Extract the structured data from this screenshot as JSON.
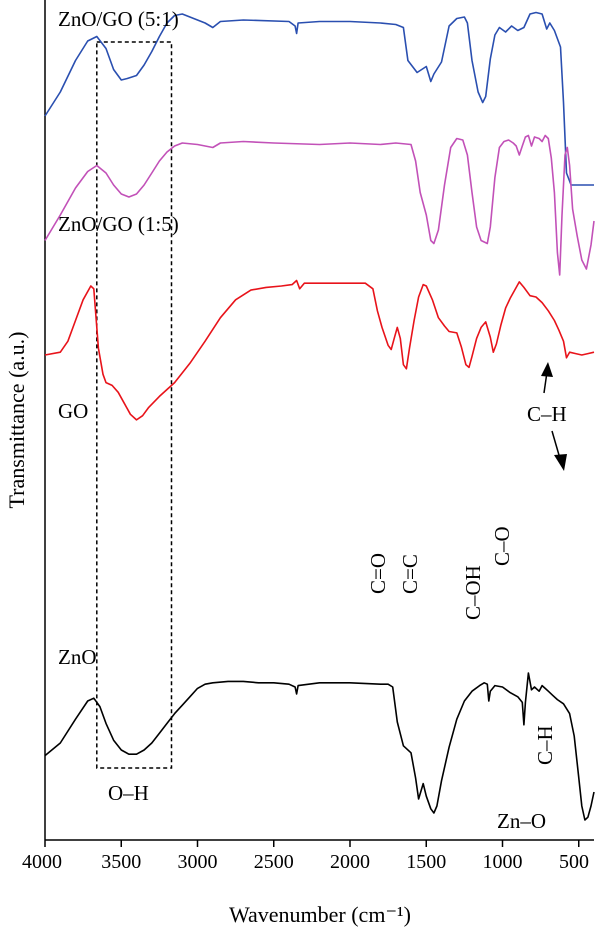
{
  "chart_data": {
    "type": "line",
    "title": "",
    "xlabel": "Wavenumber (cm⁻¹)",
    "ylabel": "Transmittance (a.u.)",
    "xlim": [
      4000,
      400
    ],
    "x_reversed": true,
    "x_ticks": [
      4000,
      3500,
      3000,
      2500,
      2000,
      1500,
      1000,
      500
    ],
    "y_ticks_shown": false,
    "grid": false,
    "legend": "none",
    "series": [
      {
        "name": "ZnO/GO (5:1)",
        "color": "#2a4fb0",
        "offset": 3,
        "points": [
          [
            4000,
            0.46
          ],
          [
            3900,
            0.62
          ],
          [
            3800,
            0.83
          ],
          [
            3720,
            0.96
          ],
          [
            3660,
            0.99
          ],
          [
            3600,
            0.91
          ],
          [
            3550,
            0.77
          ],
          [
            3500,
            0.7
          ],
          [
            3460,
            0.71
          ],
          [
            3400,
            0.73
          ],
          [
            3350,
            0.8
          ],
          [
            3300,
            0.89
          ],
          [
            3250,
            0.99
          ],
          [
            3200,
            1.08
          ],
          [
            3150,
            1.13
          ],
          [
            3100,
            1.14
          ],
          [
            3050,
            1.12
          ],
          [
            2950,
            1.08
          ],
          [
            2900,
            1.05
          ],
          [
            2850,
            1.09
          ],
          [
            2700,
            1.1
          ],
          [
            2400,
            1.09
          ],
          [
            2360,
            1.06
          ],
          [
            2350,
            1.01
          ],
          [
            2340,
            1.08
          ],
          [
            2200,
            1.09
          ],
          [
            2000,
            1.09
          ],
          [
            1800,
            1.08
          ],
          [
            1700,
            1.07
          ],
          [
            1650,
            1.05
          ],
          [
            1620,
            0.83
          ],
          [
            1560,
            0.75
          ],
          [
            1500,
            0.79
          ],
          [
            1470,
            0.69
          ],
          [
            1450,
            0.74
          ],
          [
            1400,
            0.82
          ],
          [
            1350,
            1.06
          ],
          [
            1300,
            1.11
          ],
          [
            1250,
            1.12
          ],
          [
            1230,
            1.08
          ],
          [
            1200,
            0.83
          ],
          [
            1160,
            0.62
          ],
          [
            1130,
            0.55
          ],
          [
            1110,
            0.59
          ],
          [
            1080,
            0.84
          ],
          [
            1050,
            1.0
          ],
          [
            1020,
            1.05
          ],
          [
            980,
            1.02
          ],
          [
            940,
            1.06
          ],
          [
            900,
            1.03
          ],
          [
            860,
            1.05
          ],
          [
            820,
            1.14
          ],
          [
            780,
            1.15
          ],
          [
            740,
            1.14
          ],
          [
            710,
            1.04
          ],
          [
            690,
            1.08
          ],
          [
            660,
            1.03
          ],
          [
            620,
            0.92
          ],
          [
            600,
            0.55
          ],
          [
            580,
            0.08
          ],
          [
            550,
            0.0
          ],
          [
            500,
            0.0
          ],
          [
            450,
            0.0
          ],
          [
            400,
            0.0
          ]
        ]
      },
      {
        "name": "ZnO/GO (1:5)",
        "color": "#c251b8",
        "offset": 2,
        "points": [
          [
            4000,
            0.53
          ],
          [
            3900,
            0.7
          ],
          [
            3800,
            0.88
          ],
          [
            3720,
            0.99
          ],
          [
            3660,
            1.03
          ],
          [
            3600,
            0.98
          ],
          [
            3550,
            0.9
          ],
          [
            3500,
            0.84
          ],
          [
            3450,
            0.82
          ],
          [
            3400,
            0.84
          ],
          [
            3350,
            0.9
          ],
          [
            3300,
            0.98
          ],
          [
            3250,
            1.06
          ],
          [
            3200,
            1.12
          ],
          [
            3150,
            1.16
          ],
          [
            3100,
            1.18
          ],
          [
            3000,
            1.17
          ],
          [
            2900,
            1.15
          ],
          [
            2850,
            1.18
          ],
          [
            2700,
            1.19
          ],
          [
            2500,
            1.18
          ],
          [
            2200,
            1.17
          ],
          [
            2000,
            1.18
          ],
          [
            1800,
            1.17
          ],
          [
            1700,
            1.18
          ],
          [
            1600,
            1.17
          ],
          [
            1570,
            1.06
          ],
          [
            1540,
            0.85
          ],
          [
            1500,
            0.7
          ],
          [
            1470,
            0.53
          ],
          [
            1450,
            0.51
          ],
          [
            1420,
            0.6
          ],
          [
            1380,
            0.9
          ],
          [
            1340,
            1.15
          ],
          [
            1300,
            1.21
          ],
          [
            1260,
            1.2
          ],
          [
            1230,
            1.1
          ],
          [
            1200,
            0.85
          ],
          [
            1170,
            0.62
          ],
          [
            1140,
            0.53
          ],
          [
            1100,
            0.51
          ],
          [
            1080,
            0.62
          ],
          [
            1050,
            0.95
          ],
          [
            1020,
            1.15
          ],
          [
            990,
            1.19
          ],
          [
            960,
            1.2
          ],
          [
            930,
            1.18
          ],
          [
            910,
            1.16
          ],
          [
            890,
            1.1
          ],
          [
            870,
            1.16
          ],
          [
            850,
            1.22
          ],
          [
            830,
            1.23
          ],
          [
            810,
            1.16
          ],
          [
            790,
            1.22
          ],
          [
            760,
            1.21
          ],
          [
            740,
            1.19
          ],
          [
            720,
            1.23
          ],
          [
            700,
            1.21
          ],
          [
            680,
            1.08
          ],
          [
            660,
            0.85
          ],
          [
            640,
            0.45
          ],
          [
            625,
            0.3
          ],
          [
            610,
            0.7
          ],
          [
            590,
            1.1
          ],
          [
            575,
            1.15
          ],
          [
            560,
            1.03
          ],
          [
            540,
            0.74
          ],
          [
            510,
            0.56
          ],
          [
            480,
            0.4
          ],
          [
            450,
            0.34
          ],
          [
            420,
            0.5
          ],
          [
            400,
            0.66
          ]
        ]
      },
      {
        "name": "GO",
        "color": "#e8131a",
        "offset": 1,
        "points": [
          [
            4000,
            1.0
          ],
          [
            3900,
            1.02
          ],
          [
            3850,
            1.1
          ],
          [
            3800,
            1.25
          ],
          [
            3750,
            1.4
          ],
          [
            3700,
            1.5
          ],
          [
            3680,
            1.48
          ],
          [
            3650,
            1.05
          ],
          [
            3620,
            0.86
          ],
          [
            3600,
            0.8
          ],
          [
            3560,
            0.78
          ],
          [
            3520,
            0.73
          ],
          [
            3480,
            0.65
          ],
          [
            3440,
            0.57
          ],
          [
            3400,
            0.53
          ],
          [
            3360,
            0.56
          ],
          [
            3320,
            0.62
          ],
          [
            3250,
            0.7
          ],
          [
            3150,
            0.8
          ],
          [
            3050,
            0.94
          ],
          [
            2950,
            1.1
          ],
          [
            2850,
            1.27
          ],
          [
            2750,
            1.4
          ],
          [
            2650,
            1.47
          ],
          [
            2550,
            1.49
          ],
          [
            2450,
            1.5
          ],
          [
            2380,
            1.51
          ],
          [
            2350,
            1.54
          ],
          [
            2330,
            1.48
          ],
          [
            2300,
            1.52
          ],
          [
            2200,
            1.52
          ],
          [
            2000,
            1.52
          ],
          [
            1900,
            1.52
          ],
          [
            1850,
            1.48
          ],
          [
            1820,
            1.32
          ],
          [
            1790,
            1.2
          ],
          [
            1750,
            1.07
          ],
          [
            1730,
            1.04
          ],
          [
            1710,
            1.12
          ],
          [
            1690,
            1.2
          ],
          [
            1670,
            1.12
          ],
          [
            1650,
            0.93
          ],
          [
            1630,
            0.9
          ],
          [
            1610,
            1.05
          ],
          [
            1580,
            1.25
          ],
          [
            1550,
            1.42
          ],
          [
            1520,
            1.51
          ],
          [
            1500,
            1.5
          ],
          [
            1460,
            1.4
          ],
          [
            1420,
            1.27
          ],
          [
            1380,
            1.21
          ],
          [
            1350,
            1.17
          ],
          [
            1300,
            1.16
          ],
          [
            1270,
            1.06
          ],
          [
            1240,
            0.93
          ],
          [
            1220,
            0.91
          ],
          [
            1200,
            0.99
          ],
          [
            1170,
            1.12
          ],
          [
            1140,
            1.2
          ],
          [
            1110,
            1.24
          ],
          [
            1080,
            1.13
          ],
          [
            1060,
            1.02
          ],
          [
            1040,
            1.08
          ],
          [
            1010,
            1.22
          ],
          [
            980,
            1.34
          ],
          [
            950,
            1.41
          ],
          [
            920,
            1.47
          ],
          [
            890,
            1.53
          ],
          [
            860,
            1.49
          ],
          [
            820,
            1.43
          ],
          [
            780,
            1.42
          ],
          [
            740,
            1.38
          ],
          [
            700,
            1.32
          ],
          [
            660,
            1.25
          ],
          [
            630,
            1.18
          ],
          [
            600,
            1.1
          ],
          [
            580,
            0.98
          ],
          [
            560,
            1.02
          ],
          [
            520,
            1.01
          ],
          [
            480,
            1.0
          ],
          [
            440,
            1.01
          ],
          [
            400,
            1.02
          ]
        ]
      },
      {
        "name": "ZnO",
        "color": "#000000",
        "offset": 0,
        "points": [
          [
            4000,
            0.46
          ],
          [
            3900,
            0.55
          ],
          [
            3800,
            0.72
          ],
          [
            3720,
            0.85
          ],
          [
            3680,
            0.87
          ],
          [
            3640,
            0.81
          ],
          [
            3600,
            0.69
          ],
          [
            3550,
            0.57
          ],
          [
            3500,
            0.5
          ],
          [
            3450,
            0.47
          ],
          [
            3400,
            0.47
          ],
          [
            3350,
            0.5
          ],
          [
            3300,
            0.55
          ],
          [
            3250,
            0.62
          ],
          [
            3200,
            0.69
          ],
          [
            3150,
            0.76
          ],
          [
            3100,
            0.82
          ],
          [
            3050,
            0.88
          ],
          [
            3000,
            0.94
          ],
          [
            2950,
            0.97
          ],
          [
            2900,
            0.98
          ],
          [
            2800,
            0.99
          ],
          [
            2700,
            0.99
          ],
          [
            2600,
            0.98
          ],
          [
            2500,
            0.98
          ],
          [
            2400,
            0.97
          ],
          [
            2360,
            0.95
          ],
          [
            2350,
            0.9
          ],
          [
            2340,
            0.96
          ],
          [
            2200,
            0.98
          ],
          [
            2000,
            0.98
          ],
          [
            1800,
            0.97
          ],
          [
            1750,
            0.97
          ],
          [
            1720,
            0.95
          ],
          [
            1690,
            0.7
          ],
          [
            1650,
            0.53
          ],
          [
            1600,
            0.48
          ],
          [
            1570,
            0.3
          ],
          [
            1550,
            0.15
          ],
          [
            1520,
            0.26
          ],
          [
            1500,
            0.17
          ],
          [
            1470,
            0.08
          ],
          [
            1450,
            0.05
          ],
          [
            1430,
            0.1
          ],
          [
            1400,
            0.28
          ],
          [
            1350,
            0.52
          ],
          [
            1300,
            0.72
          ],
          [
            1250,
            0.85
          ],
          [
            1200,
            0.92
          ],
          [
            1150,
            0.96
          ],
          [
            1120,
            0.98
          ],
          [
            1100,
            0.97
          ],
          [
            1090,
            0.85
          ],
          [
            1080,
            0.92
          ],
          [
            1050,
            0.96
          ],
          [
            1000,
            0.95
          ],
          [
            950,
            0.91
          ],
          [
            900,
            0.88
          ],
          [
            870,
            0.84
          ],
          [
            860,
            0.68
          ],
          [
            850,
            0.84
          ],
          [
            830,
            1.05
          ],
          [
            810,
            0.93
          ],
          [
            790,
            0.95
          ],
          [
            760,
            0.92
          ],
          [
            740,
            0.96
          ],
          [
            720,
            0.94
          ],
          [
            700,
            0.92
          ],
          [
            670,
            0.89
          ],
          [
            640,
            0.86
          ],
          [
            600,
            0.83
          ],
          [
            560,
            0.76
          ],
          [
            530,
            0.6
          ],
          [
            500,
            0.3
          ],
          [
            480,
            0.1
          ],
          [
            460,
            0.0
          ],
          [
            440,
            0.02
          ],
          [
            420,
            0.1
          ],
          [
            400,
            0.2
          ]
        ]
      }
    ],
    "annotations": [
      {
        "text": "O–H",
        "wavenumber": 3400
      },
      {
        "text": "C–H",
        "wavenumber": 650
      },
      {
        "text": "C=O",
        "wavenumber": 1730,
        "vertical": true
      },
      {
        "text": "C=C",
        "wavenumber": 1630,
        "vertical": true
      },
      {
        "text": "C–OH",
        "wavenumber": 1220,
        "vertical": true
      },
      {
        "text": "C–O",
        "wavenumber": 1060,
        "vertical": true
      },
      {
        "text": "C–H",
        "wavenumber": 850,
        "vertical": true
      },
      {
        "text": "Zn–O",
        "wavenumber": 530
      }
    ],
    "highlight_band": [
      3660,
      3170
    ]
  }
}
